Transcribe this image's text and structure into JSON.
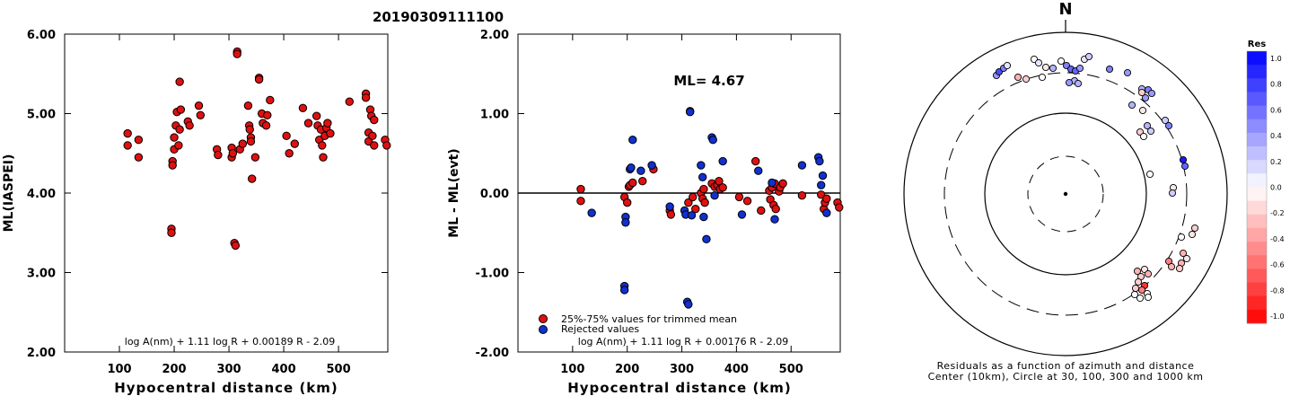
{
  "title": "20190309111100",
  "panels": {
    "left": {
      "ylabel": "ML(IASPEI)",
      "xlabel": "Hypocentral distance (km)",
      "yticks": [
        "6.00",
        "5.00",
        "4.00",
        "3.00",
        "2.00"
      ],
      "xticks": [
        "100",
        "200",
        "300",
        "400",
        "500"
      ],
      "formula": "log A(nm) + 1.11 log R + 0.00189 R - 2.09"
    },
    "middle": {
      "ylabel": "ML - ML(evt)",
      "xlabel": "Hypocentral distance (km)",
      "yticks": [
        "2.00",
        "1.00",
        "0.00",
        "-1.00",
        "-2.00"
      ],
      "xticks": [
        "100",
        "200",
        "300",
        "400",
        "500"
      ],
      "ml_label": "ML= 4.67",
      "legend": [
        "25%-75% values for trimmed mean",
        "Rejected values"
      ],
      "formula": "log A(nm) + 1.11 log R + 0.00176 R - 2.09"
    },
    "polar": {
      "north": "N",
      "caption1": "Residuals as a function of azimuth and distance",
      "caption2": "Center (10km), Circle at 30, 100, 300 and 1000 km"
    },
    "colorbar": {
      "title": "Res",
      "labels": [
        "1.0",
        "0.8",
        "0.6",
        "0.4",
        "0.2",
        "0.0",
        "-0.2",
        "-0.4",
        "-0.6",
        "-0.8",
        "-1.0"
      ]
    }
  },
  "colors": {
    "used": "#e01010",
    "rejected": "#1030d0"
  },
  "chart_data": [
    {
      "type": "scatter",
      "title": "20190309111100",
      "xlabel": "Hypocentral distance (km)",
      "ylabel": "ML(IASPEI)",
      "xlim": [
        0,
        590
      ],
      "ylim": [
        2.0,
        6.0
      ],
      "series": [
        {
          "x": [
            115,
            115,
            135,
            135,
            195,
            195,
            197,
            197,
            200,
            200,
            203,
            205,
            208,
            210,
            210,
            212,
            225,
            228,
            245,
            248,
            278,
            280,
            305,
            305,
            307,
            310,
            312,
            315,
            315,
            320,
            325,
            335,
            337,
            338,
            340,
            340,
            342,
            348,
            355,
            355,
            360,
            362,
            368,
            370,
            375,
            405,
            410,
            420,
            435,
            445,
            460,
            462,
            465,
            468,
            470,
            472,
            475,
            478,
            480,
            485,
            520,
            550,
            550,
            555,
            555,
            558,
            560,
            562,
            565,
            565,
            585,
            588
          ],
          "y": [
            4.75,
            4.6,
            4.67,
            4.45,
            3.55,
            3.5,
            4.4,
            4.35,
            4.7,
            4.55,
            4.85,
            5.02,
            4.6,
            5.4,
            4.8,
            5.05,
            4.9,
            4.85,
            5.1,
            4.98,
            4.55,
            4.48,
            4.57,
            4.45,
            4.5,
            3.37,
            3.34,
            5.78,
            5.75,
            4.55,
            4.62,
            5.1,
            4.85,
            4.8,
            4.7,
            4.65,
            4.18,
            4.45,
            5.45,
            5.43,
            5.0,
            4.88,
            4.85,
            4.98,
            5.17,
            4.72,
            4.5,
            4.62,
            5.07,
            4.88,
            4.97,
            4.85,
            4.67,
            4.8,
            4.6,
            4.45,
            4.72,
            4.82,
            4.88,
            4.75,
            5.15,
            5.25,
            5.2,
            4.76,
            4.65,
            5.05,
            4.97,
            4.72,
            4.6,
            4.92,
            4.67,
            4.6
          ]
        }
      ]
    },
    {
      "type": "scatter",
      "xlabel": "Hypocentral distance (km)",
      "ylabel": "ML - ML(evt)",
      "xlim": [
        0,
        590
      ],
      "ylim": [
        -2.0,
        2.0
      ],
      "series": [
        {
          "name": "25%-75% values for trimmed mean",
          "x": [
            115,
            115,
            195,
            200,
            203,
            205,
            210,
            228,
            248,
            278,
            280,
            312,
            320,
            325,
            335,
            338,
            340,
            342,
            355,
            360,
            365,
            368,
            370,
            375,
            405,
            420,
            435,
            445,
            460,
            462,
            465,
            468,
            470,
            472,
            478,
            480,
            485,
            520,
            555,
            560,
            562,
            565,
            585,
            588
          ],
          "y": [
            0.05,
            -0.1,
            -0.05,
            -0.12,
            0.08,
            0.1,
            0.13,
            0.15,
            0.3,
            -0.22,
            -0.27,
            -0.12,
            -0.05,
            -0.2,
            0.0,
            -0.07,
            0.05,
            -0.12,
            0.12,
            0.08,
            0.1,
            0.15,
            0.05,
            0.07,
            -0.05,
            -0.1,
            0.4,
            -0.22,
            0.03,
            -0.08,
            0.07,
            -0.15,
            0.12,
            -0.2,
            0.02,
            0.07,
            0.12,
            -0.03,
            -0.02,
            -0.2,
            -0.12,
            -0.07,
            -0.12,
            -0.18
          ]
        },
        {
          "name": "Rejected values",
          "x": [
            135,
            195,
            195,
            197,
            197,
            205,
            207,
            210,
            225,
            245,
            278,
            305,
            307,
            310,
            312,
            315,
            315,
            318,
            335,
            338,
            340,
            345,
            355,
            357,
            360,
            375,
            410,
            440,
            465,
            470,
            520,
            550,
            552,
            555,
            558,
            565
          ],
          "y": [
            -0.25,
            -1.17,
            -1.22,
            -0.3,
            -0.37,
            0.3,
            0.32,
            0.67,
            0.28,
            0.35,
            -0.17,
            -0.22,
            -0.27,
            -1.37,
            -1.4,
            1.03,
            1.02,
            -0.28,
            0.35,
            0.2,
            -0.3,
            -0.58,
            0.7,
            0.67,
            -0.03,
            0.4,
            -0.27,
            0.28,
            0.13,
            -0.33,
            0.35,
            0.45,
            0.4,
            0.1,
            0.22,
            -0.25
          ]
        }
      ]
    }
  ]
}
